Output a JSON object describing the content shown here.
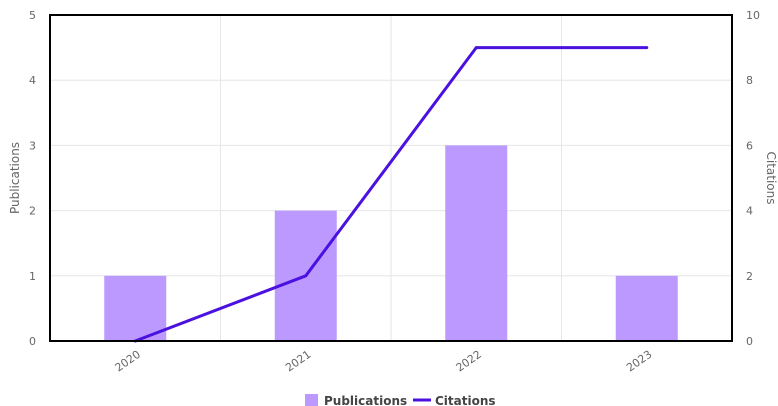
{
  "chart_data": {
    "type": "bar",
    "categories": [
      "2020",
      "2021",
      "2022",
      "2023"
    ],
    "series": [
      {
        "name": "Publications",
        "kind": "bar",
        "axis": "left",
        "values": [
          1,
          2,
          3,
          1
        ],
        "color": "#bb99ff"
      },
      {
        "name": "Citations",
        "kind": "line",
        "axis": "right",
        "values": [
          0,
          2,
          9,
          9
        ],
        "color": "#4b11e0"
      }
    ],
    "ylabel_left": "Publications",
    "ylabel_right": "Citations",
    "ylim_left": [
      0,
      5
    ],
    "ylim_right": [
      0,
      10
    ],
    "yticks_left": [
      "0",
      "1",
      "2",
      "3",
      "4",
      "5"
    ],
    "yticks_right": [
      "0",
      "2",
      "4",
      "6",
      "8",
      "10"
    ],
    "grid": true,
    "legend_position": "bottom"
  }
}
